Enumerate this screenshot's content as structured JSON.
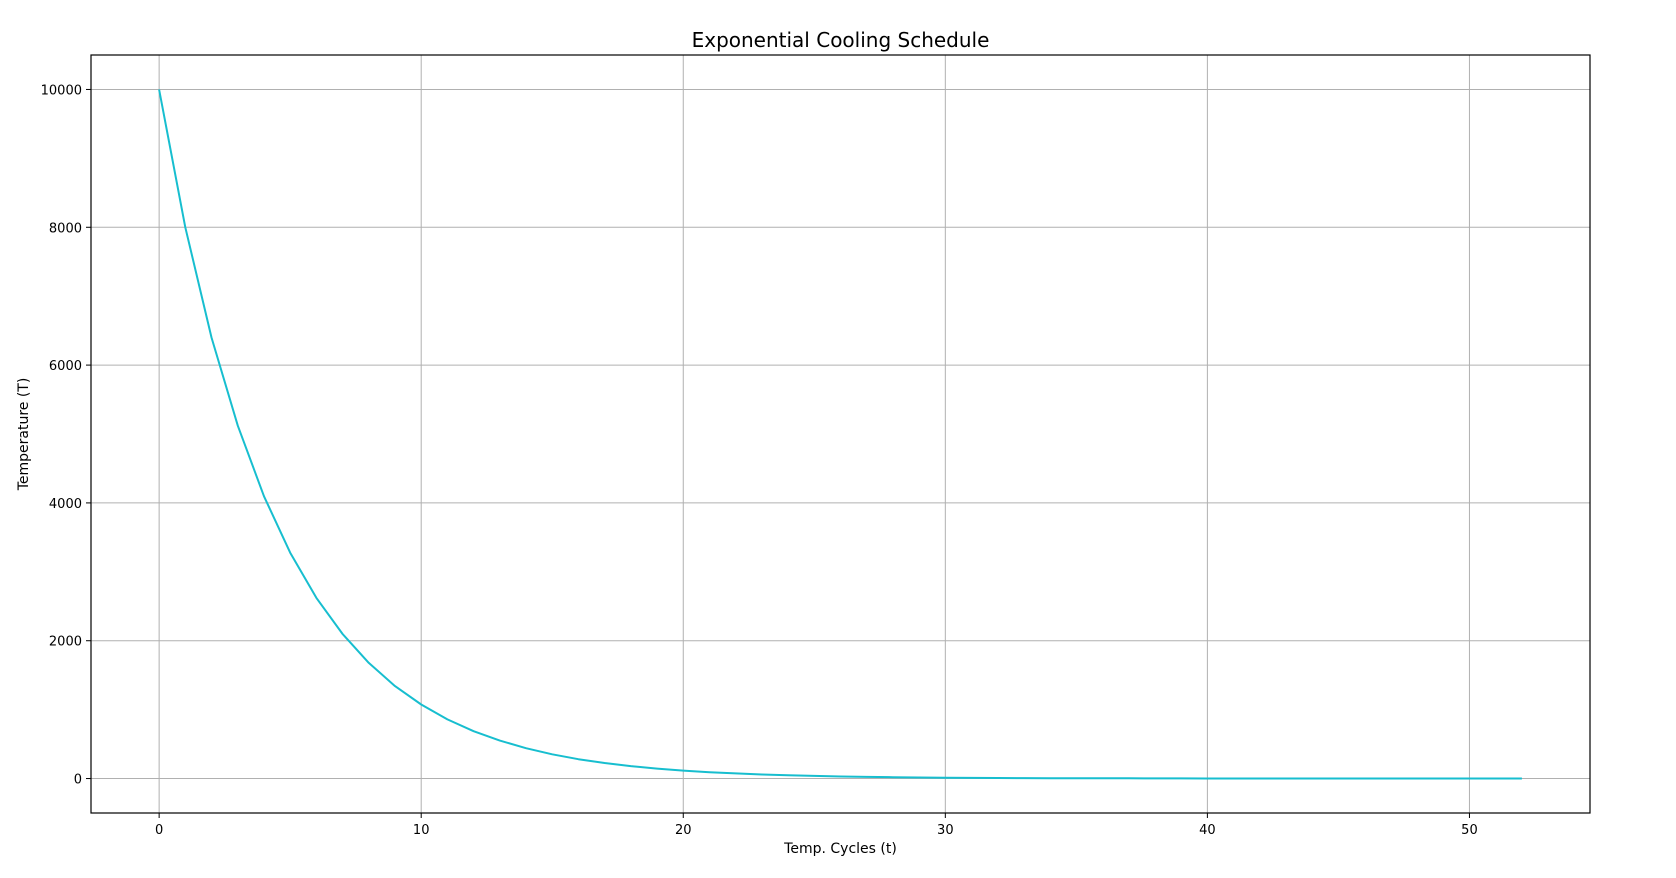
{
  "chart_data": {
    "type": "line",
    "title": "Exponential Cooling Schedule",
    "xlabel": "Temp. Cycles (t)",
    "ylabel": "Temperature (T)",
    "xlim": [
      -2.6,
      54.6
    ],
    "ylim": [
      -500,
      10500
    ],
    "xticks": [
      0,
      10,
      20,
      30,
      40,
      50
    ],
    "yticks": [
      0,
      2000,
      4000,
      6000,
      8000,
      10000
    ],
    "grid": true,
    "line_color": "#17becf",
    "series": [
      {
        "x": [
          0,
          1,
          2,
          3,
          4,
          5,
          6,
          7,
          8,
          9,
          10,
          11,
          12,
          13,
          14,
          15,
          16,
          17,
          18,
          19,
          20,
          21,
          22,
          23,
          24,
          25,
          26,
          27,
          28,
          29,
          30,
          31,
          32,
          33,
          34,
          35,
          36,
          37,
          38,
          39,
          40,
          41,
          42,
          43,
          44,
          45,
          46,
          47,
          48,
          49,
          50,
          51,
          52
        ],
        "y": [
          10000,
          8000,
          6400,
          5120,
          4096,
          3277,
          2621,
          2097,
          1678,
          1342,
          1074,
          859,
          687,
          550,
          440,
          352,
          281,
          225,
          180,
          144,
          115,
          92,
          74,
          59,
          47,
          38,
          30,
          24,
          19,
          15,
          12,
          10,
          8,
          6,
          5,
          4,
          3,
          3,
          2,
          2,
          1,
          1,
          1,
          1,
          1,
          0,
          0,
          0,
          0,
          0,
          0,
          0,
          0
        ]
      }
    ]
  }
}
